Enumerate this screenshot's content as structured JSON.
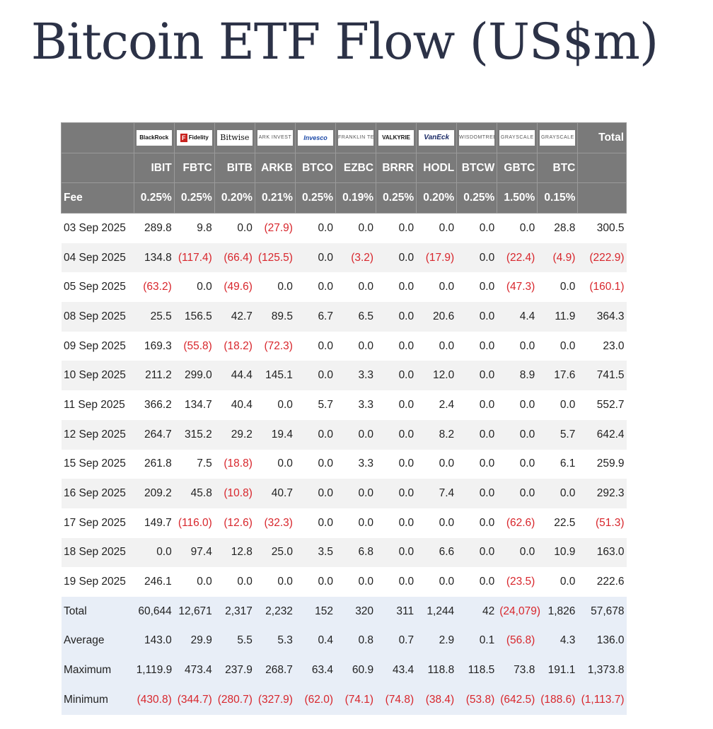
{
  "title": "Bitcoin ETF Flow (US$m)",
  "header": {
    "total_label": "Total",
    "fee_label": "Fee",
    "issuers": [
      {
        "logo": "BlackRock",
        "ticker": "IBIT",
        "fee": "0.25%"
      },
      {
        "logo": "Fidelity",
        "ticker": "FBTC",
        "fee": "0.25%"
      },
      {
        "logo": "Bitwise",
        "ticker": "BITB",
        "fee": "0.20%"
      },
      {
        "logo": "ARK INVEST",
        "ticker": "ARKB",
        "fee": "0.21%"
      },
      {
        "logo": "Invesco",
        "ticker": "BTCO",
        "fee": "0.25%"
      },
      {
        "logo": "FRANKLIN TEMPLETON",
        "ticker": "EZBC",
        "fee": "0.19%"
      },
      {
        "logo": "VALKYRIE",
        "ticker": "BRRR",
        "fee": "0.25%"
      },
      {
        "logo": "VanEck",
        "ticker": "HODL",
        "fee": "0.20%"
      },
      {
        "logo": "WISDOMTREE",
        "ticker": "BTCW",
        "fee": "0.25%"
      },
      {
        "logo": "GRAYSCALE",
        "ticker": "GBTC",
        "fee": "1.50%"
      },
      {
        "logo": "GRAYSCALE",
        "ticker": "BTC",
        "fee": "0.15%"
      }
    ]
  },
  "rows": [
    {
      "label": "03 Sep 2025",
      "cells": [
        "289.8",
        "9.8",
        "0.0",
        "(27.9)",
        "0.0",
        "0.0",
        "0.0",
        "0.0",
        "0.0",
        "0.0",
        "28.8",
        "300.5"
      ]
    },
    {
      "label": "04 Sep 2025",
      "cells": [
        "134.8",
        "(117.4)",
        "(66.4)",
        "(125.5)",
        "0.0",
        "(3.2)",
        "0.0",
        "(17.9)",
        "0.0",
        "(22.4)",
        "(4.9)",
        "(222.9)"
      ]
    },
    {
      "label": "05 Sep 2025",
      "cells": [
        "(63.2)",
        "0.0",
        "(49.6)",
        "0.0",
        "0.0",
        "0.0",
        "0.0",
        "0.0",
        "0.0",
        "(47.3)",
        "0.0",
        "(160.1)"
      ]
    },
    {
      "label": "08 Sep 2025",
      "cells": [
        "25.5",
        "156.5",
        "42.7",
        "89.5",
        "6.7",
        "6.5",
        "0.0",
        "20.6",
        "0.0",
        "4.4",
        "11.9",
        "364.3"
      ]
    },
    {
      "label": "09 Sep 2025",
      "cells": [
        "169.3",
        "(55.8)",
        "(18.2)",
        "(72.3)",
        "0.0",
        "0.0",
        "0.0",
        "0.0",
        "0.0",
        "0.0",
        "0.0",
        "23.0"
      ]
    },
    {
      "label": "10 Sep 2025",
      "cells": [
        "211.2",
        "299.0",
        "44.4",
        "145.1",
        "0.0",
        "3.3",
        "0.0",
        "12.0",
        "0.0",
        "8.9",
        "17.6",
        "741.5"
      ]
    },
    {
      "label": "11 Sep 2025",
      "cells": [
        "366.2",
        "134.7",
        "40.4",
        "0.0",
        "5.7",
        "3.3",
        "0.0",
        "2.4",
        "0.0",
        "0.0",
        "0.0",
        "552.7"
      ]
    },
    {
      "label": "12 Sep 2025",
      "cells": [
        "264.7",
        "315.2",
        "29.2",
        "19.4",
        "0.0",
        "0.0",
        "0.0",
        "8.2",
        "0.0",
        "0.0",
        "5.7",
        "642.4"
      ]
    },
    {
      "label": "15 Sep 2025",
      "cells": [
        "261.8",
        "7.5",
        "(18.8)",
        "0.0",
        "0.0",
        "3.3",
        "0.0",
        "0.0",
        "0.0",
        "0.0",
        "6.1",
        "259.9"
      ]
    },
    {
      "label": "16 Sep 2025",
      "cells": [
        "209.2",
        "45.8",
        "(10.8)",
        "40.7",
        "0.0",
        "0.0",
        "0.0",
        "7.4",
        "0.0",
        "0.0",
        "0.0",
        "292.3"
      ]
    },
    {
      "label": "17 Sep 2025",
      "cells": [
        "149.7",
        "(116.0)",
        "(12.6)",
        "(32.3)",
        "0.0",
        "0.0",
        "0.0",
        "0.0",
        "0.0",
        "(62.6)",
        "22.5",
        "(51.3)"
      ]
    },
    {
      "label": "18 Sep 2025",
      "cells": [
        "0.0",
        "97.4",
        "12.8",
        "25.0",
        "3.5",
        "6.8",
        "0.0",
        "6.6",
        "0.0",
        "0.0",
        "10.9",
        "163.0"
      ]
    },
    {
      "label": "19 Sep 2025",
      "cells": [
        "246.1",
        "0.0",
        "0.0",
        "0.0",
        "0.0",
        "0.0",
        "0.0",
        "0.0",
        "0.0",
        "(23.5)",
        "0.0",
        "222.6"
      ]
    }
  ],
  "summary": [
    {
      "label": "Total",
      "cells": [
        "60,644",
        "12,671",
        "2,317",
        "2,232",
        "152",
        "320",
        "311",
        "1,244",
        "42",
        "(24,079)",
        "1,826",
        "57,678"
      ]
    },
    {
      "label": "Average",
      "cells": [
        "143.0",
        "29.9",
        "5.5",
        "5.3",
        "0.4",
        "0.8",
        "0.7",
        "2.9",
        "0.1",
        "(56.8)",
        "4.3",
        "136.0"
      ]
    },
    {
      "label": "Maximum",
      "cells": [
        "1,119.9",
        "473.4",
        "237.9",
        "268.7",
        "63.4",
        "60.9",
        "43.4",
        "118.8",
        "118.5",
        "73.8",
        "191.1",
        "1,373.8"
      ]
    },
    {
      "label": "Minimum",
      "cells": [
        "(430.8)",
        "(344.7)",
        "(280.7)",
        "(327.9)",
        "(62.0)",
        "(74.1)",
        "(74.8)",
        "(38.4)",
        "(53.8)",
        "(642.5)",
        "(188.6)",
        "(1,113.7)"
      ]
    }
  ],
  "colors": {
    "header_bg": "#7a7a7a",
    "negative": "#d8262c",
    "row_alt": "#f2f2f2",
    "summary_bg": "#e8eef7",
    "title": "#2c3247"
  }
}
